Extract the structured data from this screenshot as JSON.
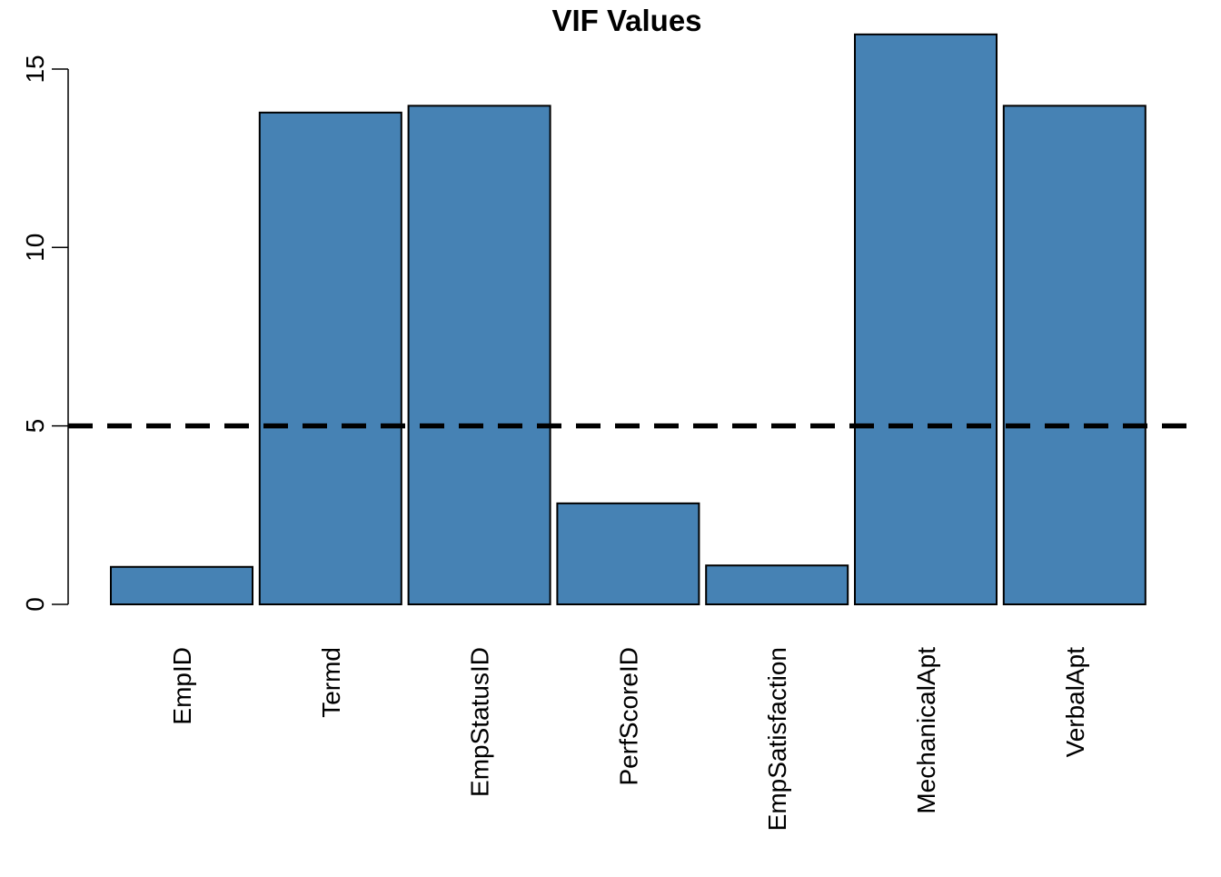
{
  "chart_data": {
    "type": "bar",
    "title": "VIF Values",
    "xlabel": "",
    "ylabel": "",
    "categories": [
      "EmpID",
      "Termd",
      "EmpStatusID",
      "PerfScoreID",
      "EmpSatisfaction",
      "MechanicalApt",
      "VerbalApt"
    ],
    "values": [
      1.05,
      13.78,
      13.97,
      2.83,
      1.09,
      15.97,
      13.97
    ],
    "ylim": [
      0,
      15
    ],
    "yticks": [
      0,
      5,
      10,
      15
    ],
    "threshold_line": {
      "value": 5,
      "style": "dashed",
      "color": "#000000"
    },
    "bar_color": "#4682B4",
    "bar_border_color": "#000000",
    "grid": false,
    "legend": "none"
  }
}
